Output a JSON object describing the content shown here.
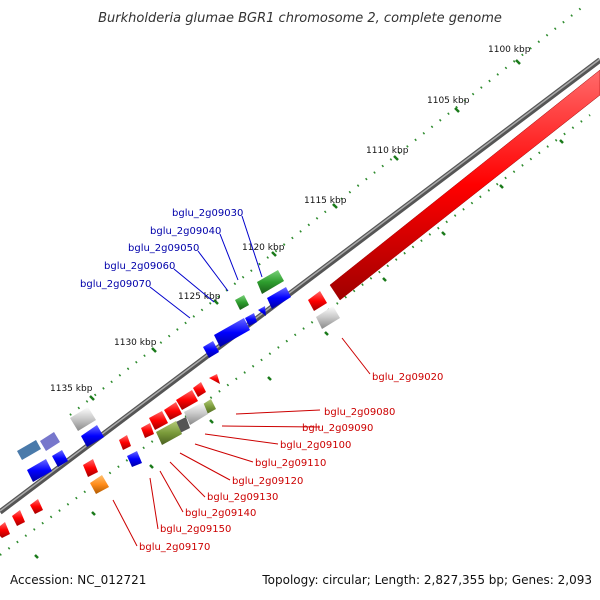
{
  "title": "Burkholderia glumae BGR1 chromosome 2, complete genome",
  "ticks": [
    "1100 kbp",
    "1105 kbp",
    "1110 kbp",
    "1115 kbp",
    "1120 kbp",
    "1125 kbp",
    "1130 kbp",
    "1135 kbp"
  ],
  "gene_labels": {
    "upper": [
      "bglu_2g09030",
      "bglu_2g09040",
      "bglu_2g09050",
      "bglu_2g09060",
      "bglu_2g09070"
    ],
    "lower_right": [
      "bglu_2g09020",
      "bglu_2g09080",
      "bglu_2g09090",
      "bglu_2g09100",
      "bglu_2g09110",
      "bglu_2g09120"
    ],
    "lower_left": [
      "bglu_2g09130",
      "bglu_2g09140",
      "bglu_2g09150",
      "bglu_2g09170"
    ]
  },
  "footer": {
    "accession": "Accession: NC_012721",
    "summary": "Topology: circular; Length: 2,827,355 bp; Genes: 2,093"
  },
  "colors": {
    "backbone": "#808080",
    "gene_red": "#ff1a1a",
    "gene_blue": "#1a1aff",
    "gene_green": "#2e9e2e",
    "gene_olive": "#7a9a3a",
    "gene_gray": "#c8c8c8",
    "gene_orange": "#ff8c1a",
    "gene_purple": "#6666cc",
    "gene_steel": "#4a7aaa",
    "dash_green": "#2e8b2e"
  }
}
